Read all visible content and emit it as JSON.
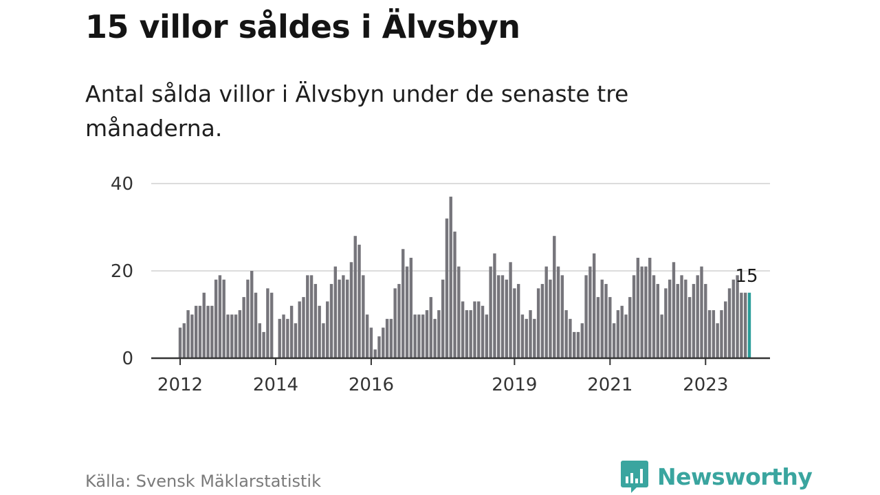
{
  "header": {
    "title": "15 villor såldes i Älvsbyn",
    "subtitle": "Antal sålda villor i Älvsbyn under de senaste tre månaderna."
  },
  "footer": {
    "source": "Källa: Svensk Mäklarstatistik",
    "brand": "Newsworthy"
  },
  "colors": {
    "bar": "#76757b",
    "highlight": "#2a9d99",
    "grid": "#dcdcdc",
    "axis": "#333333",
    "brand": "#3aa59f"
  },
  "chart_data": {
    "type": "bar",
    "title": "15 villor såldes i Älvsbyn",
    "xlabel": "",
    "ylabel": "",
    "ylim": [
      0,
      40
    ],
    "yticks": [
      0,
      20,
      40
    ],
    "start": "2012-01",
    "x_tick_labels": [
      {
        "label": "2012",
        "index": 0
      },
      {
        "label": "2014",
        "index": 24
      },
      {
        "label": "2016",
        "index": 48
      },
      {
        "label": "2019",
        "index": 84
      },
      {
        "label": "2021",
        "index": 108
      },
      {
        "label": "2023",
        "index": 132
      }
    ],
    "series": [
      {
        "name": "Antal sålda villor (senaste tre månaderna)",
        "values": [
          7,
          8,
          11,
          10,
          12,
          12,
          15,
          12,
          12,
          18,
          19,
          18,
          10,
          10,
          10,
          11,
          14,
          18,
          20,
          15,
          8,
          6,
          16,
          15,
          0,
          9,
          10,
          9,
          12,
          8,
          13,
          14,
          19,
          19,
          17,
          12,
          8,
          13,
          17,
          21,
          18,
          19,
          18,
          22,
          28,
          26,
          19,
          10,
          7,
          2,
          5,
          7,
          9,
          9,
          16,
          17,
          25,
          21,
          23,
          10,
          10,
          10,
          11,
          14,
          9,
          11,
          18,
          32,
          37,
          29,
          21,
          13,
          11,
          11,
          13,
          13,
          12,
          10,
          21,
          24,
          19,
          19,
          18,
          22,
          16,
          17,
          10,
          9,
          11,
          9,
          16,
          17,
          21,
          18,
          28,
          21,
          19,
          11,
          9,
          6,
          6,
          8,
          19,
          21,
          24,
          14,
          18,
          17,
          14,
          8,
          11,
          12,
          10,
          14,
          19,
          23,
          21,
          21,
          23,
          19,
          17,
          10,
          16,
          18,
          22,
          17,
          19,
          18,
          14,
          17,
          19,
          21,
          17,
          11,
          11,
          8,
          11,
          13,
          16,
          18,
          19,
          15,
          15,
          15
        ]
      }
    ],
    "highlight": {
      "index": 143,
      "label": "15"
    }
  }
}
